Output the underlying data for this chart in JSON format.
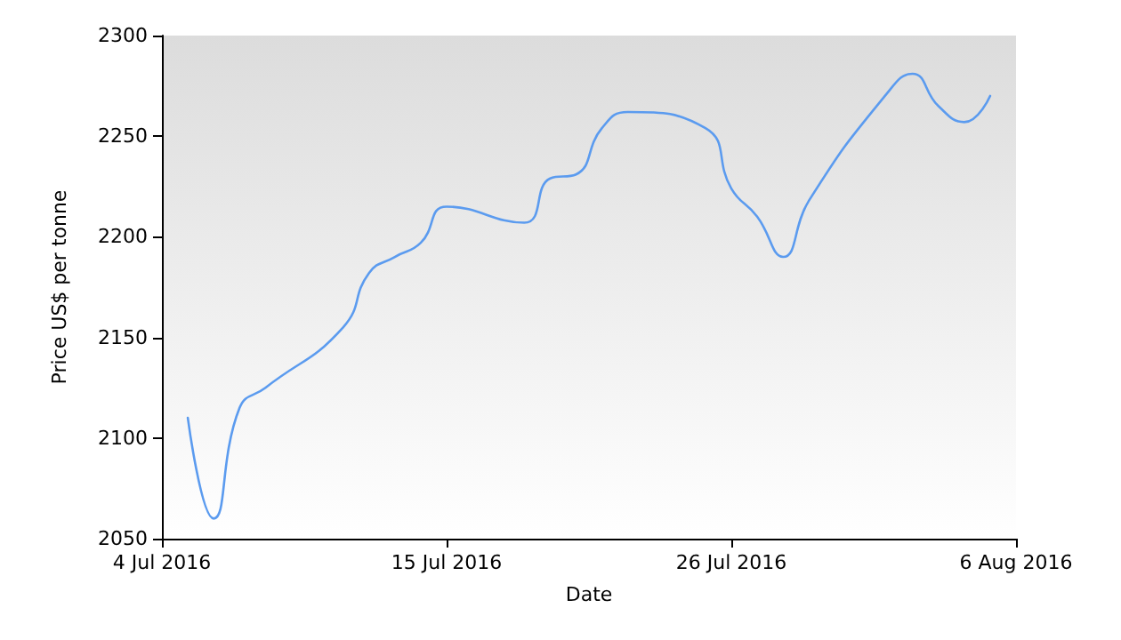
{
  "chart_data": {
    "type": "line",
    "xlabel": "Date",
    "ylabel": "Price US$ per tonne",
    "x": [
      "2016-07-05",
      "2016-07-06",
      "2016-07-07",
      "2016-07-08",
      "2016-07-11",
      "2016-07-12",
      "2016-07-13",
      "2016-07-14",
      "2016-07-15",
      "2016-07-18",
      "2016-07-19",
      "2016-07-20",
      "2016-07-21",
      "2016-07-22",
      "2016-07-25",
      "2016-07-26",
      "2016-07-27",
      "2016-07-28",
      "2016-07-29",
      "2016-08-01",
      "2016-08-02",
      "2016-08-03",
      "2016-08-04",
      "2016-08-05"
    ],
    "series": [
      {
        "color": "#5b9bef",
        "values": [
          2110,
          2060,
          2115,
          2125,
          2155,
          2182,
          2190,
          2197,
          2215,
          2207,
          2229,
          2231,
          2254,
          2262,
          2254,
          2224,
          2210,
          2190,
          2218,
          2271,
          2281,
          2265,
          2257,
          2270
        ]
      }
    ],
    "xlim": [
      "2016-07-04",
      "2016-08-06"
    ],
    "xticks": [
      {
        "value": "2016-07-04",
        "label": "4 Jul 2016"
      },
      {
        "value": "2016-07-15",
        "label": "15 Jul 2016"
      },
      {
        "value": "2016-07-26",
        "label": "26 Jul 2016"
      },
      {
        "value": "2016-08-06",
        "label": "6 Aug 2016"
      }
    ],
    "ylim": [
      2050,
      2300
    ],
    "yticks": [
      2050,
      2100,
      2150,
      2200,
      2250,
      2300
    ],
    "grid": false,
    "marker": "none",
    "line_style": "solid"
  }
}
